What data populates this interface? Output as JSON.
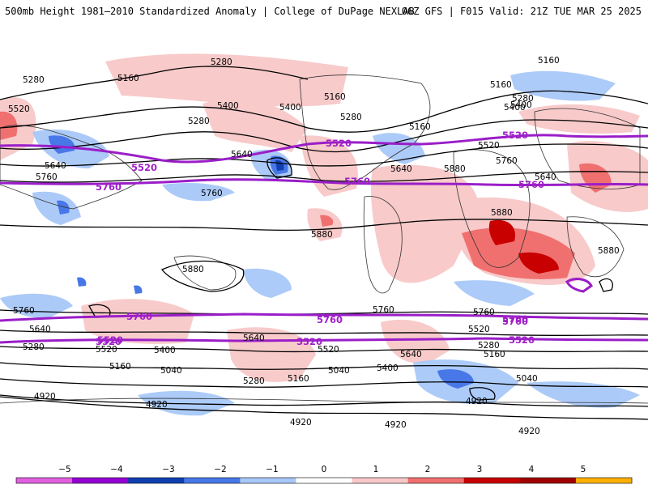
{
  "header": {
    "title_left": "500mb Height 1981–2010 Standardized Anomaly | College of DuPage NEXLAB",
    "title_right": "06Z GFS | F015 Valid: 21Z TUE MAR 25 2025"
  },
  "contour_labels": [
    "5280",
    "5160",
    "5520",
    "5400",
    "5280",
    "5160",
    "5280",
    "5640",
    "5760",
    "5400",
    "5280",
    "5640",
    "5400",
    "5520",
    "5160",
    "5760",
    "5640",
    "5880",
    "5160",
    "5280",
    "5400",
    "5160",
    "5760",
    "5640",
    "5880",
    "5880",
    "5880",
    "5880",
    "5760",
    "5640",
    "5520",
    "5280",
    "5400",
    "5160",
    "5040",
    "4920",
    "4920",
    "4920",
    "5760",
    "5640",
    "5280",
    "5160",
    "5040",
    "4920",
    "5160",
    "5280",
    "5520",
    "5400",
    "5640",
    "5760",
    "5520",
    "5040",
    "4920",
    "4920"
  ],
  "purple_labels": [
    "5520",
    "5760",
    "5520",
    "5760",
    "5520",
    "5760",
    "5760",
    "5520",
    "5760",
    "5520",
    "5760",
    "5520",
    "5520",
    "5760"
  ],
  "colorbar": {
    "ticks": [
      "−5",
      "−4",
      "−3",
      "−2",
      "−1",
      "0",
      "1",
      "2",
      "3",
      "4",
      "5"
    ],
    "colors": [
      "#e060e0",
      "#9400d3",
      "#1040b0",
      "#4878e8",
      "#a8c8f8",
      "#ffffff",
      "#f8c8c8",
      "#f07070",
      "#c80000",
      "#a00000",
      "#ffb000"
    ]
  }
}
